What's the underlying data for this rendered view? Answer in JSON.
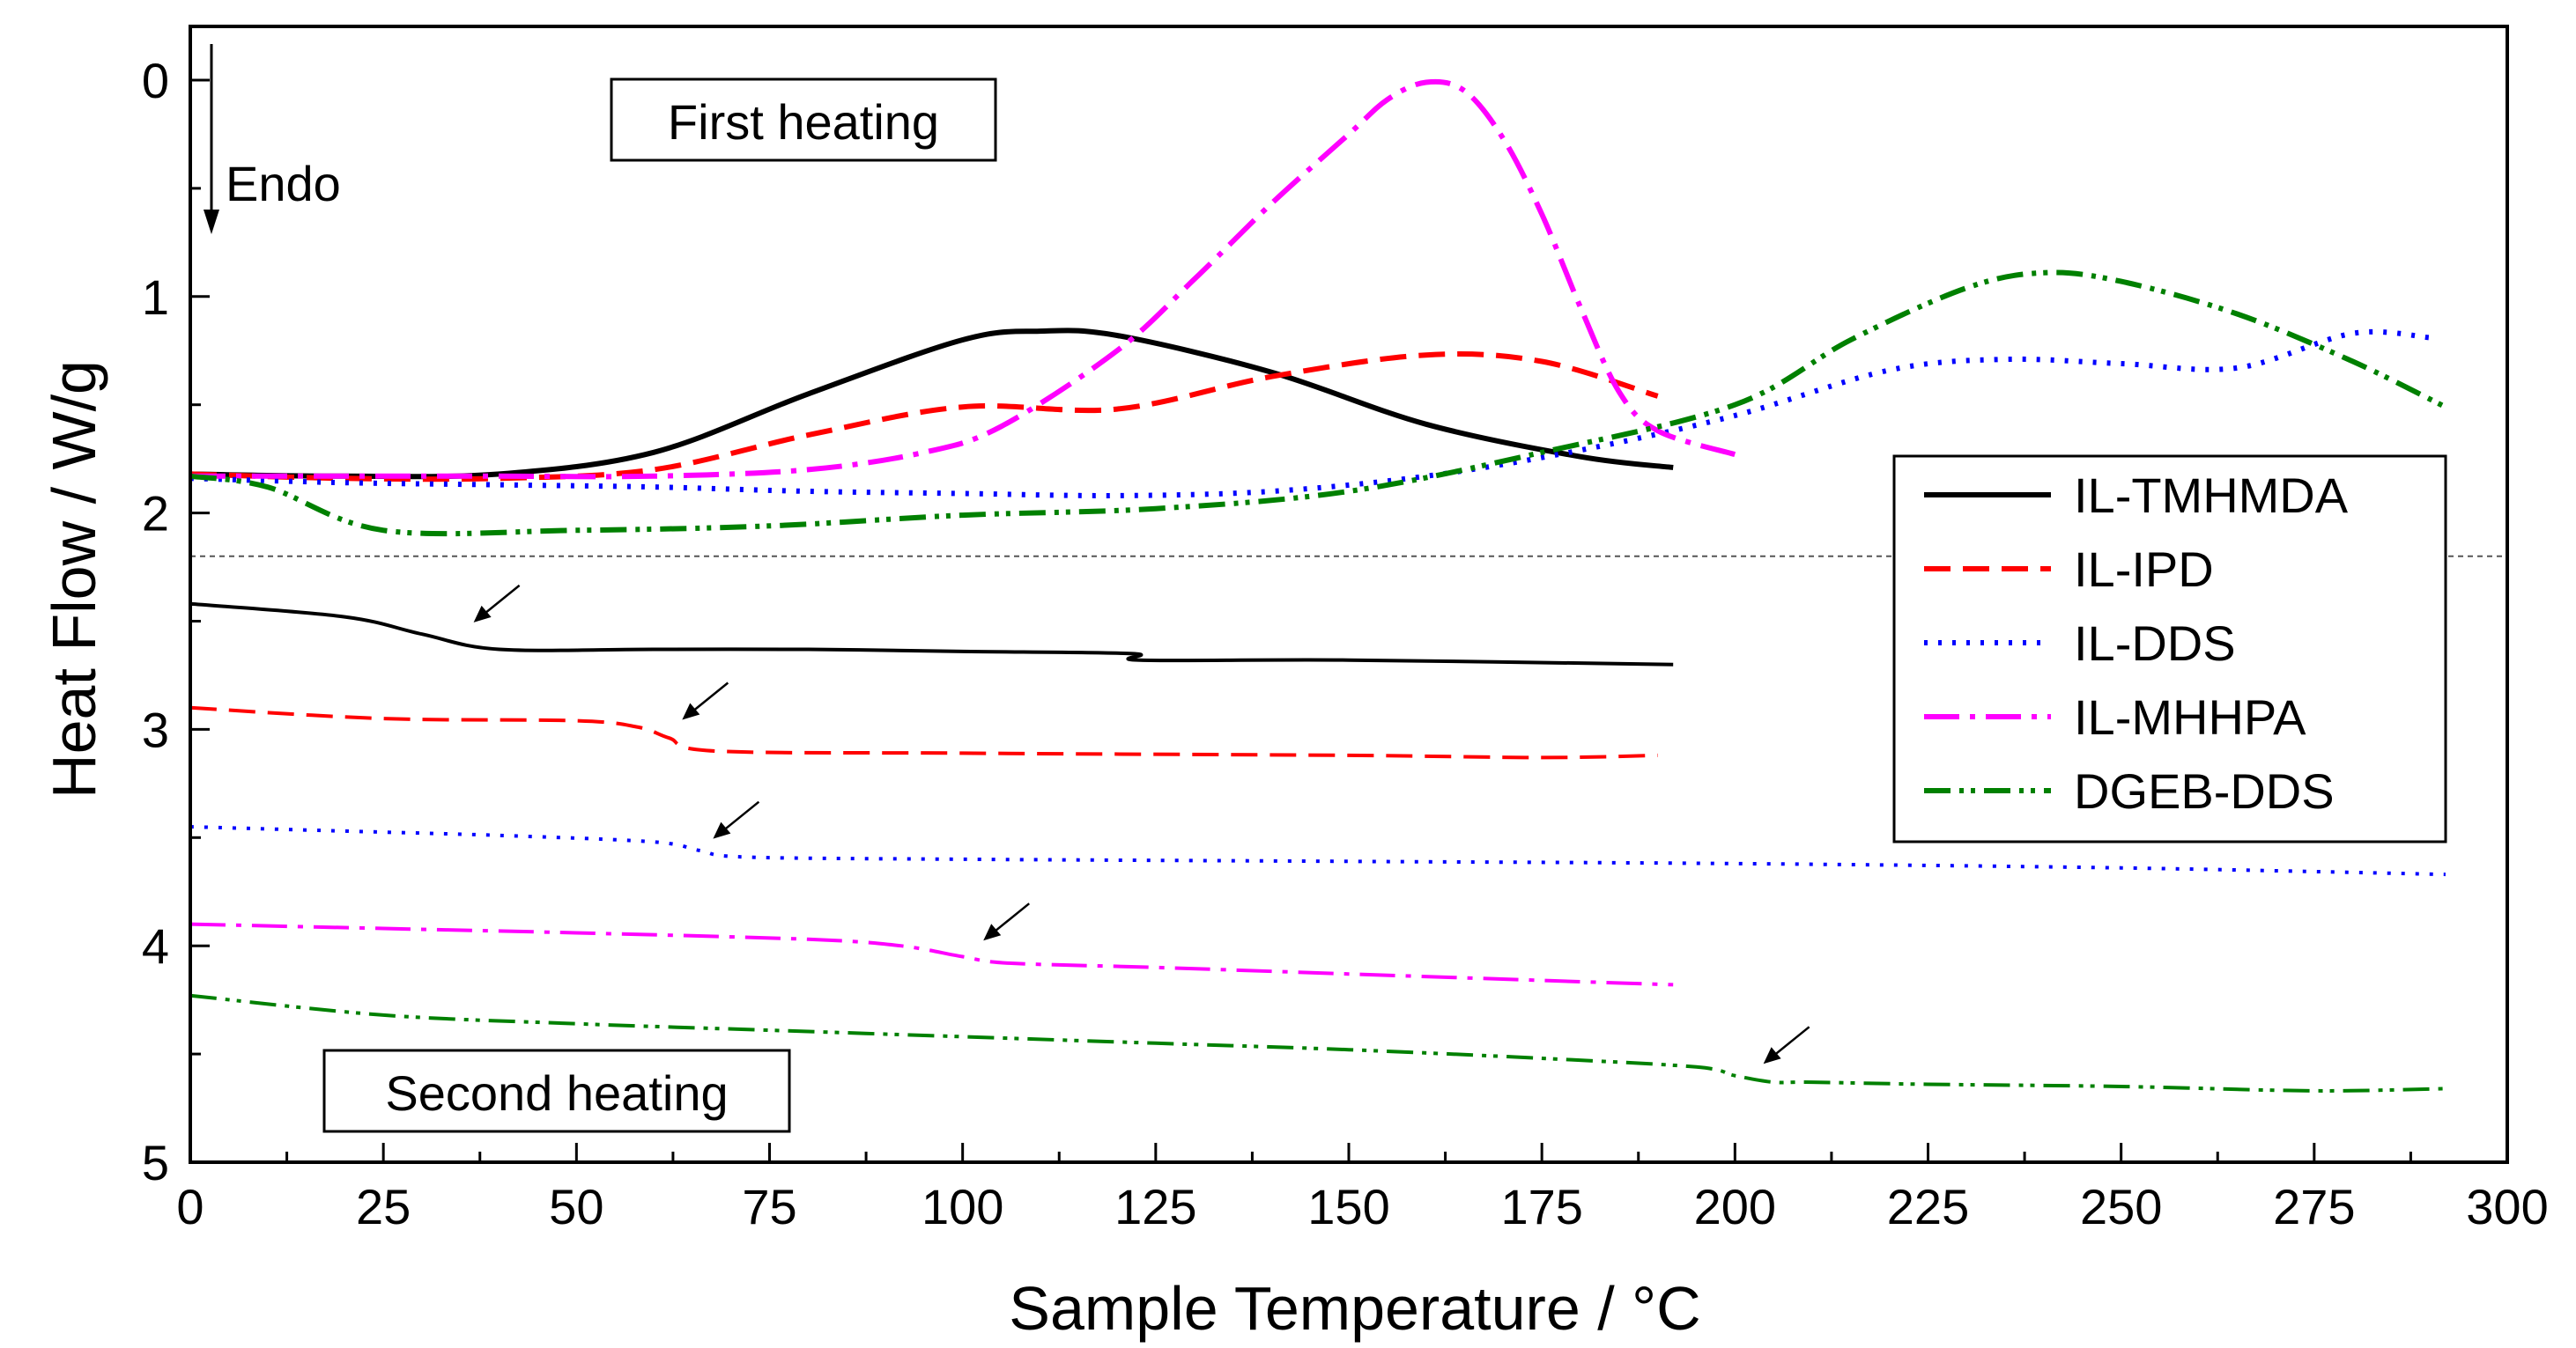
{
  "chart_data": {
    "type": "line",
    "title": "",
    "xlabel": "Sample Temperature / °C",
    "ylabel": "Heat Flow / W/g",
    "xlim": [
      0,
      300
    ],
    "ylim": [
      5,
      -0.25
    ],
    "y_inverted": true,
    "xticks": [
      0,
      25,
      50,
      75,
      100,
      125,
      150,
      175,
      200,
      225,
      250,
      275,
      300
    ],
    "yticks": [
      0,
      1,
      2,
      3,
      4,
      5
    ],
    "grid": false,
    "legend_position": "right",
    "divider_y": 2.2,
    "annotations": {
      "endo": "Endo",
      "first_heating": "First heating",
      "second_heating": "Second heating"
    },
    "colors": {
      "IL-TMHMDA": "#000000",
      "IL-IPD": "#ff0000",
      "IL-DDS": "#0000ff",
      "IL-MHHPA": "#ff00ff",
      "DGEB-DDS": "#008000"
    },
    "series": [
      {
        "name": "IL-TMHMDA",
        "run": "first",
        "x": [
          0,
          20,
          40,
          60,
          80,
          100,
          110,
          120,
          140,
          160,
          180,
          192
        ],
        "y": [
          1.82,
          1.83,
          1.82,
          1.72,
          1.45,
          1.2,
          1.16,
          1.18,
          1.35,
          1.59,
          1.74,
          1.79
        ]
      },
      {
        "name": "IL-IPD",
        "run": "first",
        "x": [
          0,
          20,
          40,
          60,
          80,
          100,
          120,
          140,
          160,
          175,
          190
        ],
        "y": [
          1.82,
          1.84,
          1.84,
          1.8,
          1.64,
          1.51,
          1.52,
          1.37,
          1.27,
          1.3,
          1.46
        ]
      },
      {
        "name": "IL-DDS",
        "run": "first",
        "x": [
          0,
          20,
          40,
          60,
          80,
          100,
          120,
          140,
          160,
          180,
          200,
          220,
          235,
          250,
          265,
          280,
          290
        ],
        "y": [
          1.84,
          1.86,
          1.87,
          1.88,
          1.9,
          1.91,
          1.92,
          1.9,
          1.83,
          1.71,
          1.55,
          1.34,
          1.29,
          1.31,
          1.33,
          1.17,
          1.19
        ]
      },
      {
        "name": "IL-MHHPA",
        "run": "first",
        "x": [
          0,
          20,
          40,
          60,
          80,
          95,
          105,
          120,
          130,
          140,
          150,
          155,
          160,
          165,
          170,
          175,
          180,
          185,
          190,
          200
        ],
        "y": [
          1.83,
          1.83,
          1.83,
          1.83,
          1.8,
          1.72,
          1.6,
          1.25,
          0.92,
          0.57,
          0.25,
          0.09,
          0.01,
          0.05,
          0.27,
          0.62,
          1.05,
          1.44,
          1.62,
          1.73
        ]
      },
      {
        "name": "DGEB-DDS",
        "run": "first",
        "x": [
          0,
          10,
          25,
          50,
          75,
          100,
          125,
          150,
          175,
          200,
          215,
          230,
          240,
          250,
          265,
          280,
          292
        ],
        "y": [
          1.83,
          1.88,
          2.08,
          2.08,
          2.06,
          2.01,
          1.98,
          1.9,
          1.72,
          1.5,
          1.2,
          0.96,
          0.89,
          0.93,
          1.08,
          1.3,
          1.51
        ]
      },
      {
        "name": "IL-TMHMDA",
        "run": "second",
        "x": [
          0,
          20,
          30,
          40,
          60,
          80,
          100,
          122,
          123,
          150,
          192
        ],
        "y": [
          2.42,
          2.48,
          2.56,
          2.63,
          2.63,
          2.63,
          2.64,
          2.65,
          2.68,
          2.68,
          2.7
        ]
      },
      {
        "name": "IL-IPD",
        "run": "second",
        "x": [
          0,
          25,
          50,
          58,
          62,
          68,
          100,
          150,
          175,
          190
        ],
        "y": [
          2.9,
          2.95,
          2.96,
          2.99,
          3.04,
          3.1,
          3.11,
          3.12,
          3.13,
          3.12
        ]
      },
      {
        "name": "IL-DDS",
        "run": "second",
        "x": [
          0,
          20,
          40,
          60,
          66,
          72,
          100,
          150,
          200,
          250,
          292
        ],
        "y": [
          3.45,
          3.47,
          3.49,
          3.52,
          3.56,
          3.59,
          3.6,
          3.61,
          3.62,
          3.64,
          3.67
        ]
      },
      {
        "name": "IL-MHHPA",
        "run": "second",
        "x": [
          0,
          25,
          50,
          80,
          92,
          100,
          106,
          125,
          150,
          175,
          192
        ],
        "y": [
          3.9,
          3.92,
          3.94,
          3.97,
          4.0,
          4.05,
          4.08,
          4.1,
          4.13,
          4.16,
          4.18
        ]
      },
      {
        "name": "DGEB-DDS",
        "run": "second",
        "x": [
          0,
          25,
          50,
          75,
          100,
          125,
          150,
          175,
          195,
          200,
          205,
          210,
          225,
          250,
          275,
          292
        ],
        "y": [
          4.23,
          4.32,
          4.36,
          4.39,
          4.42,
          4.45,
          4.48,
          4.52,
          4.56,
          4.6,
          4.63,
          4.63,
          4.64,
          4.65,
          4.67,
          4.66
        ]
      }
    ],
    "arrows": [
      {
        "series": "IL-TMHMDA",
        "x": 36,
        "y": 2.53
      },
      {
        "series": "IL-IPD",
        "x": 63,
        "y": 2.98
      },
      {
        "series": "IL-DDS",
        "x": 67,
        "y": 3.53
      },
      {
        "series": "IL-MHHPA",
        "x": 102,
        "y": 4.0
      },
      {
        "series": "DGEB-DDS",
        "x": 203,
        "y": 4.57
      }
    ]
  }
}
